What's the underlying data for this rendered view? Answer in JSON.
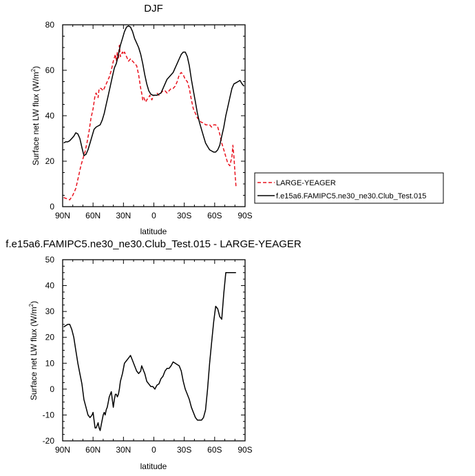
{
  "chart_data": [
    {
      "type": "line",
      "title": "DJF",
      "xlabel": "latitude",
      "ylabel": "Surface net LW flux (W/m²)",
      "ylabel_text": "Surface net LW flux (W/m",
      "ylabel_sup": "2",
      "ylabel_close": ")",
      "xlim": [
        90,
        -90
      ],
      "ylim": [
        0,
        80
      ],
      "xticks": [
        90,
        60,
        30,
        0,
        -30,
        -60,
        -90
      ],
      "xtick_labels": [
        "90N",
        "60N",
        "30N",
        "0",
        "30S",
        "60S",
        "90S"
      ],
      "yticks": [
        0,
        20,
        40,
        60,
        80
      ],
      "ytick_labels": [
        "0",
        "20",
        "40",
        "60",
        "80"
      ],
      "legend": "right",
      "series": [
        {
          "name": "LARGE-YEAGER",
          "color": "#e8101c",
          "dash": "dashed",
          "x": [
            89,
            86,
            83,
            80,
            77,
            74,
            72,
            70,
            68,
            66,
            64,
            62,
            60,
            58,
            57,
            55,
            54,
            52,
            50,
            48,
            46,
            44,
            42,
            40,
            38,
            37,
            36,
            35,
            34,
            33,
            31,
            30,
            29,
            27,
            25,
            23,
            21,
            19,
            17,
            15,
            13,
            12,
            11,
            10,
            8,
            7,
            5,
            4,
            2,
            0,
            -2,
            -3,
            -5,
            -7,
            -9,
            -11,
            -13,
            -15,
            -17,
            -19,
            -21,
            -23,
            -25,
            -27,
            -29,
            -31,
            -33,
            -35,
            -37,
            -39,
            -41,
            -43,
            -45,
            -47,
            -49,
            -51,
            -53,
            -55,
            -57,
            -59,
            -61,
            -63,
            -65,
            -67,
            -69,
            -71,
            -73,
            -75,
            -77,
            -78,
            -79,
            -80,
            -81
          ],
          "y": [
            4,
            3.5,
            3,
            5,
            8,
            14,
            18,
            21,
            24,
            28,
            33,
            39,
            43,
            49,
            50,
            48,
            52,
            52,
            51,
            53,
            55,
            57,
            60,
            64,
            67,
            64,
            68,
            65,
            71,
            66,
            68,
            67,
            68,
            66,
            64,
            65,
            64,
            63,
            62,
            58,
            52,
            50,
            47,
            48,
            46,
            47,
            48,
            49,
            47,
            49,
            49,
            50,
            49,
            50,
            51,
            51,
            50,
            51,
            52,
            52,
            53,
            55,
            58,
            59,
            58,
            56,
            55,
            52,
            47,
            43,
            41,
            39,
            38,
            37,
            37,
            36,
            36,
            36,
            35,
            36,
            36,
            35,
            32,
            28,
            25,
            22,
            19,
            18,
            22,
            27,
            22,
            15,
            9
          ]
        },
        {
          "name": "f.e15a6.FAMIPC5.ne30_ne30.Club_Test.015",
          "color": "#000000",
          "dash": "solid",
          "x": [
            89,
            87,
            85,
            83,
            81,
            79,
            77,
            75,
            73,
            71,
            69,
            67,
            65,
            63,
            61,
            59,
            57,
            55,
            53,
            51,
            49,
            47,
            45,
            43,
            41,
            39,
            37,
            35,
            33,
            31,
            29,
            27,
            25,
            23,
            21,
            19,
            17,
            15,
            13,
            11,
            9,
            7,
            5,
            3,
            1,
            -1,
            -3,
            -5,
            -7,
            -9,
            -11,
            -13,
            -15,
            -17,
            -19,
            -21,
            -23,
            -25,
            -27,
            -29,
            -31,
            -33,
            -35,
            -37,
            -39,
            -41,
            -43,
            -45,
            -47,
            -49,
            -51,
            -53,
            -55,
            -57,
            -59,
            -61,
            -63,
            -65,
            -67,
            -69,
            -71,
            -73,
            -75,
            -77,
            -79,
            -81,
            -83,
            -85,
            -87,
            -89
          ],
          "y": [
            28,
            28.5,
            28.5,
            29,
            30,
            31,
            32.5,
            32,
            30,
            26,
            22.5,
            23,
            25,
            28,
            31,
            34,
            35,
            35.5,
            36,
            38,
            41,
            45,
            49,
            53,
            57,
            61,
            63,
            67,
            71,
            74,
            77,
            79,
            79.5,
            79,
            77,
            74,
            72,
            70,
            67,
            63,
            58,
            54,
            51,
            49.5,
            49,
            49,
            49,
            49.5,
            50,
            52,
            54,
            56,
            57,
            58,
            59,
            61,
            63,
            65,
            67,
            68,
            68,
            66,
            62,
            56,
            51,
            46,
            41,
            37,
            34,
            31,
            28,
            26.5,
            25,
            24.5,
            24,
            24,
            25,
            27,
            31,
            35,
            40,
            44,
            48,
            52,
            54,
            54.5,
            55,
            55.5,
            54,
            53
          ]
        }
      ]
    },
    {
      "type": "line",
      "title": "f.e15a6.FAMIPC5.ne30_ne30.Club_Test.015 - LARGE-YEAGER",
      "xlabel": "latitude",
      "ylabel": "Surface net LW flux (W/m²)",
      "ylabel_text": "Surface net LW flux (W/m",
      "ylabel_sup": "2",
      "ylabel_close": ")",
      "xlim": [
        90,
        -90
      ],
      "ylim": [
        -20,
        50
      ],
      "xticks": [
        90,
        60,
        30,
        0,
        -30,
        -60,
        -90
      ],
      "xtick_labels": [
        "90N",
        "60N",
        "30N",
        "0",
        "30S",
        "60S",
        "90S"
      ],
      "yticks": [
        -20,
        -10,
        0,
        10,
        20,
        30,
        40,
        50
      ],
      "ytick_labels": [
        "-20",
        "-10",
        "0",
        "10",
        "20",
        "30",
        "40",
        "50"
      ],
      "series": [
        {
          "color": "#000000",
          "dash": "solid",
          "x": [
            89,
            87,
            85,
            83,
            81,
            79,
            77,
            75,
            73,
            71,
            69,
            67,
            65,
            63,
            61,
            60,
            59,
            58,
            57,
            56,
            55,
            54,
            53,
            52,
            51,
            50,
            49,
            48,
            47,
            46,
            45,
            44,
            43,
            42,
            41,
            40,
            39,
            38,
            37,
            36,
            35,
            34,
            33,
            31,
            29,
            27,
            25,
            23,
            21,
            19,
            17,
            15,
            13,
            12,
            11,
            10,
            9,
            7,
            5,
            3,
            1,
            -1,
            -3,
            -5,
            -7,
            -9,
            -11,
            -13,
            -15,
            -17,
            -19,
            -21,
            -23,
            -25,
            -27,
            -29,
            -31,
            -33,
            -35,
            -37,
            -39,
            -41,
            -43,
            -45,
            -47,
            -49,
            -51,
            -53,
            -55,
            -57,
            -59,
            -61,
            -63,
            -65,
            -67,
            -69,
            -71,
            -73,
            -75,
            -77,
            -79,
            -81
          ],
          "y": [
            24,
            24.5,
            25,
            25,
            23,
            20,
            15,
            10,
            6,
            2,
            -4,
            -7,
            -10,
            -11,
            -10,
            -9,
            -12,
            -15,
            -15,
            -14,
            -13,
            -15,
            -16,
            -14,
            -12,
            -10,
            -9,
            -10,
            -8,
            -7,
            -5,
            -3,
            -2,
            -1,
            -4,
            -7,
            -4,
            -2,
            -2,
            -3,
            -2,
            0,
            3,
            6,
            10,
            11,
            12,
            13,
            11,
            9,
            7,
            6,
            7,
            9,
            8,
            7,
            6,
            3,
            2,
            1,
            1,
            0,
            1.5,
            2,
            4,
            5,
            7,
            8,
            8,
            9,
            10.5,
            10,
            9.5,
            9,
            7,
            3,
            0,
            -2,
            -4,
            -7,
            -9,
            -11,
            -12,
            -12,
            -12,
            -11,
            -8,
            0,
            10,
            18,
            26,
            32,
            31,
            28,
            27,
            37,
            45,
            45,
            45,
            45,
            45,
            45
          ]
        }
      ]
    }
  ]
}
